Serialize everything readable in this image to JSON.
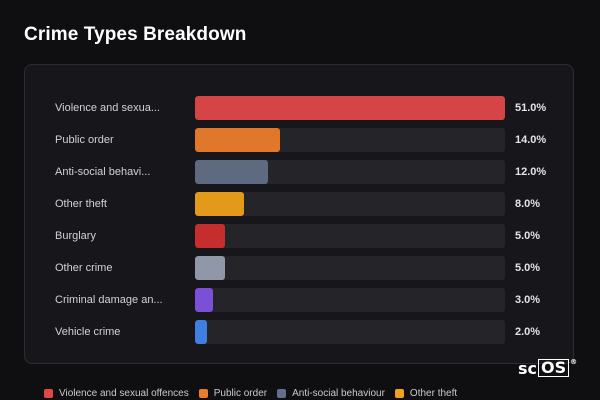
{
  "page": {
    "title": "Crime Types Breakdown"
  },
  "chart_data": {
    "type": "bar",
    "orientation": "horizontal",
    "title": "Crime Types Breakdown",
    "xlim": [
      0,
      51
    ],
    "grid": false,
    "legend": "bottom",
    "rows": [
      {
        "label": "Violence and sexua...",
        "value": 51.0,
        "value_text": "51.0%",
        "color": "#d64545"
      },
      {
        "label": "Public order",
        "value": 14.0,
        "value_text": "14.0%",
        "color": "#e0772a"
      },
      {
        "label": "Anti-social behavi...",
        "value": 12.0,
        "value_text": "12.0%",
        "color": "#5d6a80"
      },
      {
        "label": "Other theft",
        "value": 8.0,
        "value_text": "8.0%",
        "color": "#e39a1b"
      },
      {
        "label": "Burglary",
        "value": 5.0,
        "value_text": "5.0%",
        "color": "#c62d2d"
      },
      {
        "label": "Other crime",
        "value": 5.0,
        "value_text": "5.0%",
        "color": "#8f97a8"
      },
      {
        "label": "Criminal damage an...",
        "value": 3.0,
        "value_text": "3.0%",
        "color": "#7b4fd6"
      },
      {
        "label": "Vehicle crime",
        "value": 2.0,
        "value_text": "2.0%",
        "color": "#3f7fe0"
      }
    ],
    "legend_items": [
      {
        "label": "Violence and sexual offences",
        "color": "#e04848"
      },
      {
        "label": "Public order",
        "color": "#e67e2e"
      },
      {
        "label": "Anti-social behaviour",
        "color": "#60708a"
      },
      {
        "label": "Other theft",
        "color": "#f0a21c"
      }
    ]
  },
  "logo": {
    "left": "sc",
    "boxed": "OS",
    "mark": "®"
  }
}
